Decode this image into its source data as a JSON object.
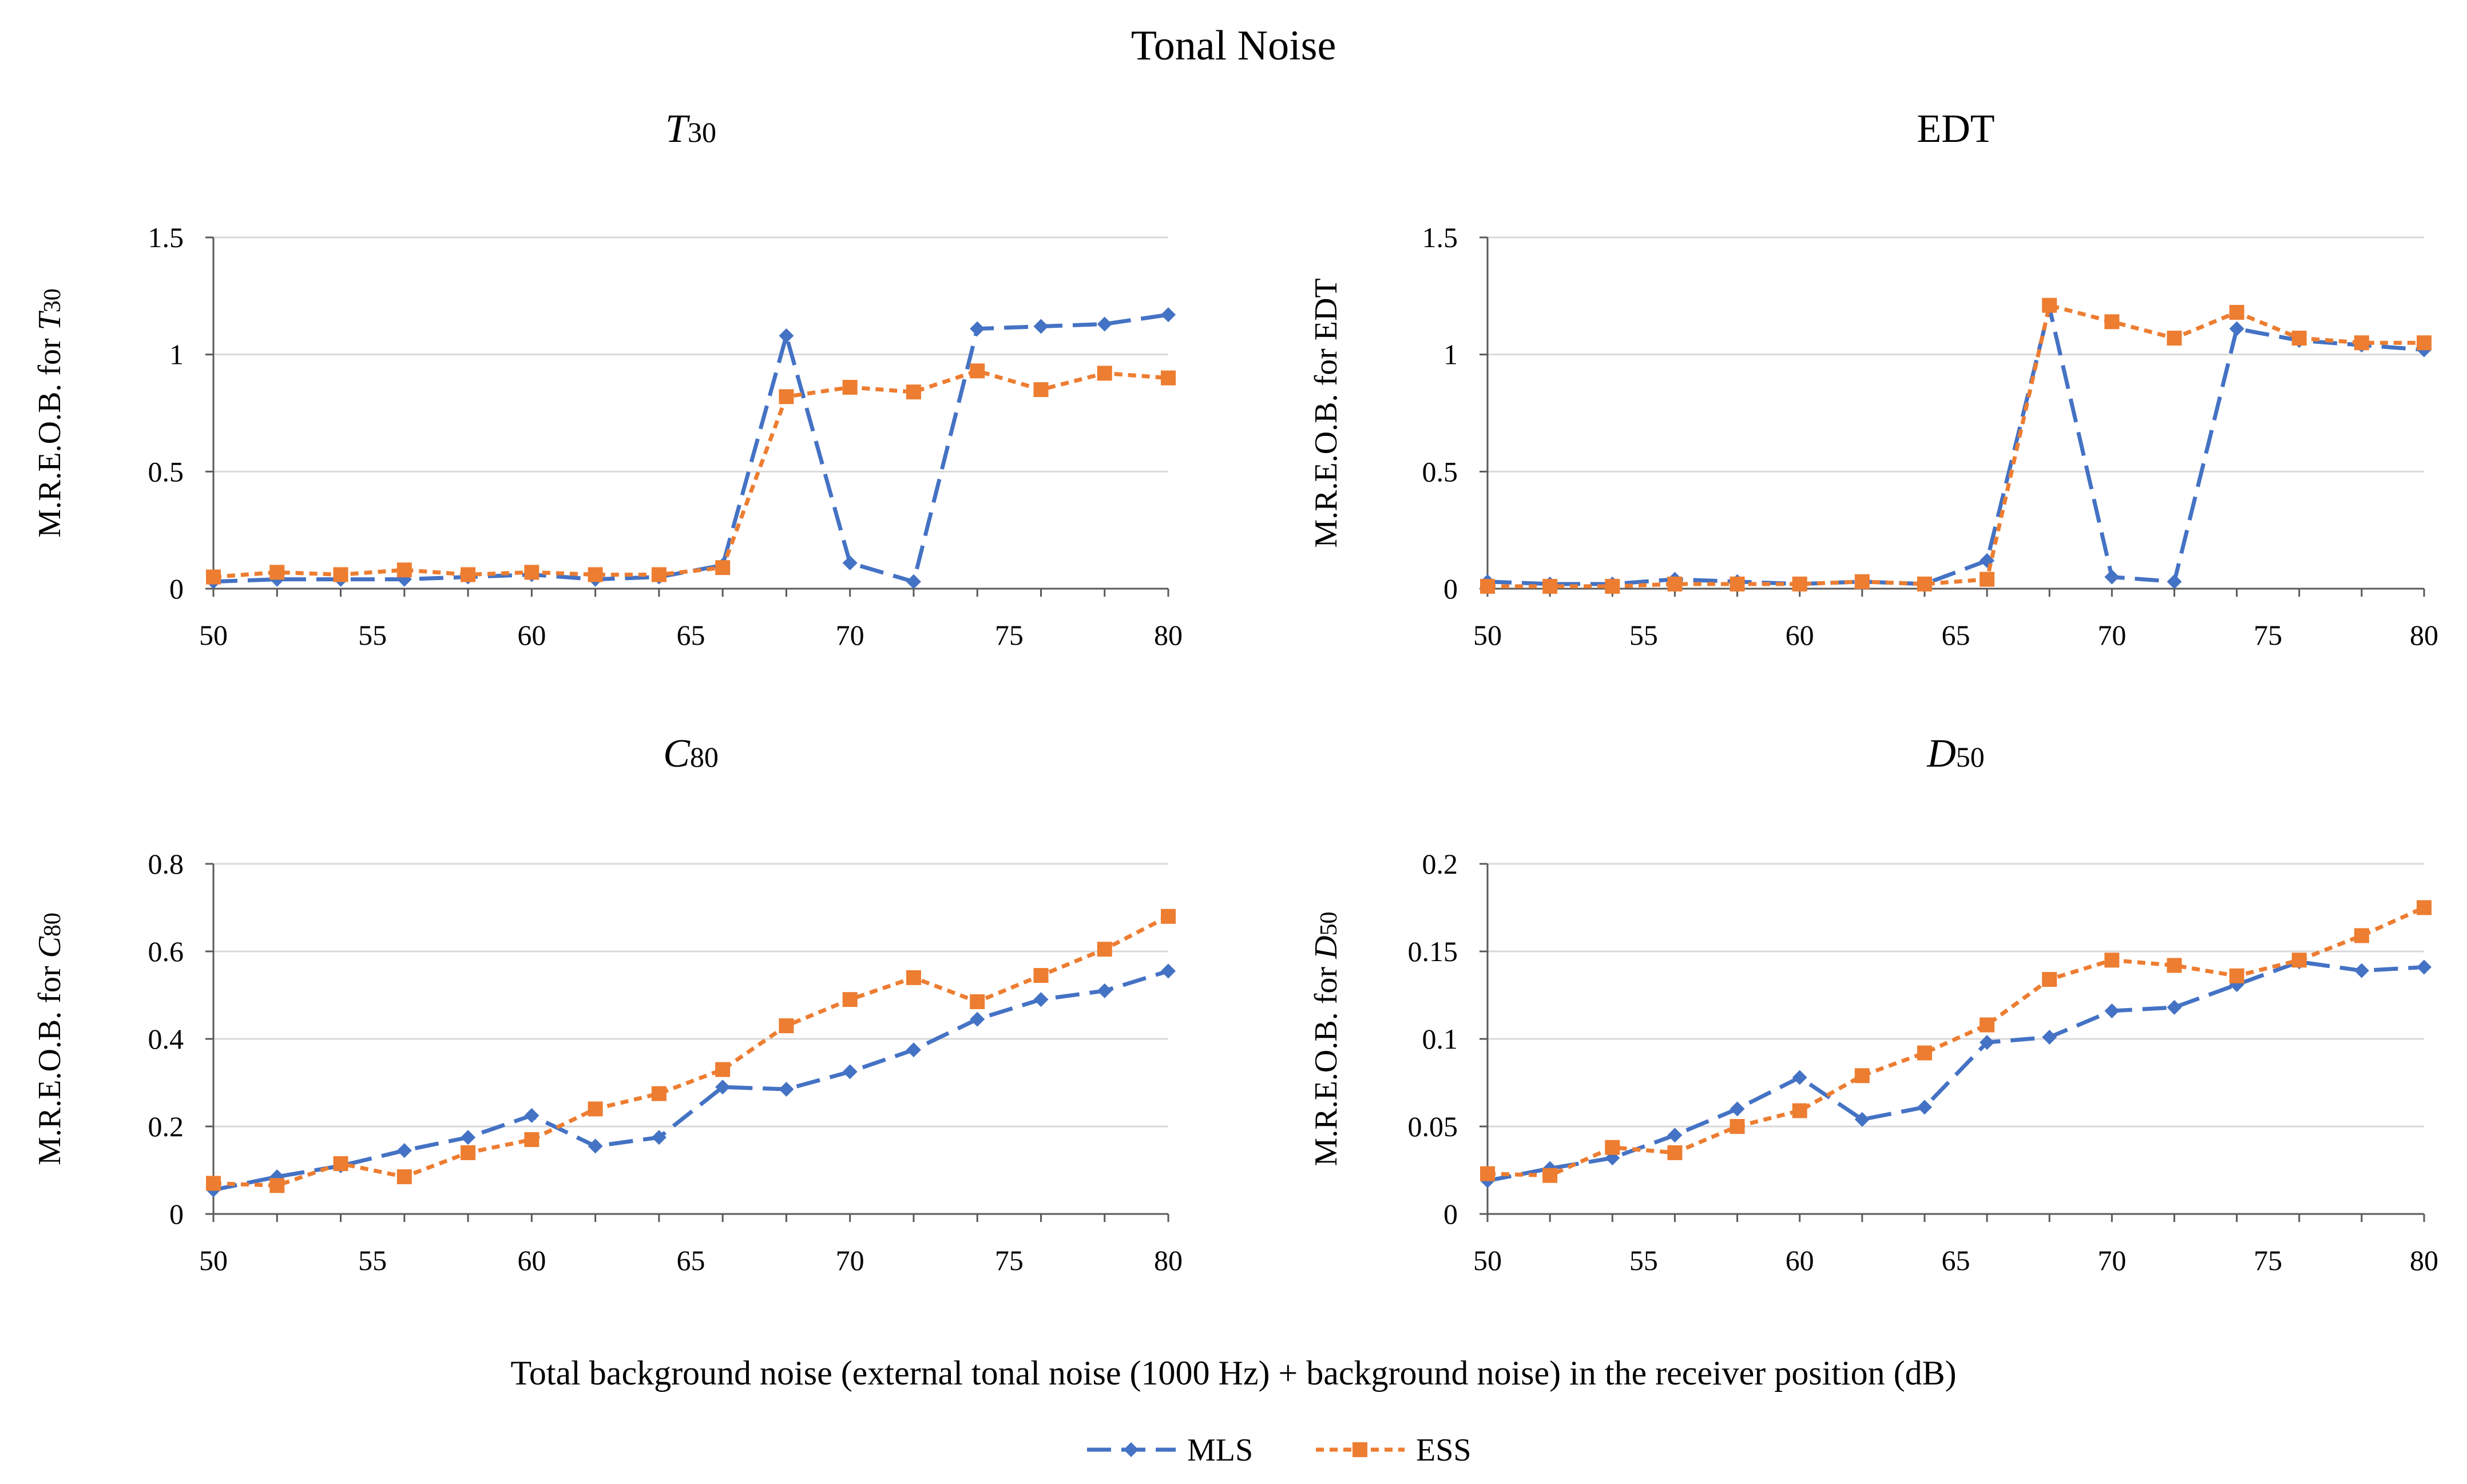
{
  "figure_title": "Tonal Noise",
  "shared_xlabel": "Total background noise (external tonal noise (1000 Hz) + background noise) in the receiver position (dB)",
  "legend": [
    {
      "name": "MLS",
      "color": "#4472C4",
      "marker": "diamond",
      "dash": "long-dash"
    },
    {
      "name": "ESS",
      "color": "#ED7D31",
      "marker": "square",
      "dash": "short-dash"
    }
  ],
  "chart_data": [
    {
      "type": "line",
      "title_main": "T",
      "title_sub": "30",
      "title_italic": true,
      "ylabel_prefix": "M.R.E.O.B. for ",
      "ylabel_main": "T",
      "ylabel_sub": "30",
      "ylabel_italic": true,
      "x": [
        50,
        52,
        54,
        56,
        58,
        60,
        62,
        64,
        66,
        68,
        70,
        72,
        74,
        76,
        78,
        80
      ],
      "xlim": [
        50,
        80
      ],
      "xticks": [
        "50",
        "55",
        "60",
        "65",
        "70",
        "75",
        "80"
      ],
      "ylim": [
        0,
        1.5
      ],
      "yticks": [
        "0",
        "0.5",
        "1",
        "1.5"
      ],
      "grid": "horizontal",
      "series": [
        {
          "name": "MLS",
          "values": [
            0.03,
            0.04,
            0.04,
            0.04,
            0.05,
            0.06,
            0.04,
            0.05,
            0.1,
            1.08,
            0.11,
            0.03,
            1.11,
            1.12,
            1.13,
            1.17
          ]
        },
        {
          "name": "ESS",
          "values": [
            0.05,
            0.07,
            0.06,
            0.08,
            0.06,
            0.07,
            0.06,
            0.06,
            0.09,
            0.82,
            0.86,
            0.84,
            0.93,
            0.85,
            0.92,
            0.9
          ]
        }
      ]
    },
    {
      "type": "line",
      "title_main": "EDT",
      "title_sub": "",
      "title_italic": false,
      "ylabel_prefix": "M.R.E.O.B. for ",
      "ylabel_main": "EDT",
      "ylabel_sub": "",
      "ylabel_italic": false,
      "x": [
        50,
        52,
        54,
        56,
        58,
        60,
        62,
        64,
        66,
        68,
        70,
        72,
        74,
        76,
        78,
        80
      ],
      "xlim": [
        50,
        80
      ],
      "xticks": [
        "50",
        "55",
        "60",
        "65",
        "70",
        "75",
        "80"
      ],
      "ylim": [
        0,
        1.5
      ],
      "yticks": [
        "0",
        "0.5",
        "1",
        "1.5"
      ],
      "grid": "horizontal",
      "series": [
        {
          "name": "MLS",
          "values": [
            0.03,
            0.02,
            0.02,
            0.04,
            0.03,
            0.02,
            0.03,
            0.02,
            0.12,
            1.2,
            0.05,
            0.03,
            1.11,
            1.06,
            1.04,
            1.02
          ]
        },
        {
          "name": "ESS",
          "values": [
            0.01,
            0.01,
            0.01,
            0.02,
            0.02,
            0.02,
            0.03,
            0.02,
            0.04,
            1.21,
            1.14,
            1.07,
            1.18,
            1.07,
            1.05,
            1.05
          ]
        }
      ]
    },
    {
      "type": "line",
      "title_main": "C",
      "title_sub": "80",
      "title_italic": true,
      "ylabel_prefix": "M.R.E.O.B. for ",
      "ylabel_main": "C",
      "ylabel_sub": "80",
      "ylabel_italic": true,
      "x": [
        50,
        52,
        54,
        56,
        58,
        60,
        62,
        64,
        66,
        68,
        70,
        72,
        74,
        76,
        78,
        80
      ],
      "xlim": [
        50,
        80
      ],
      "xticks": [
        "50",
        "55",
        "60",
        "65",
        "70",
        "75",
        "80"
      ],
      "ylim": [
        0,
        0.8
      ],
      "yticks": [
        "0",
        "0.2",
        "0.4",
        "0.6",
        "0.8"
      ],
      "grid": "horizontal",
      "series": [
        {
          "name": "MLS",
          "values": [
            0.055,
            0.085,
            0.11,
            0.145,
            0.175,
            0.225,
            0.155,
            0.175,
            0.29,
            0.285,
            0.325,
            0.375,
            0.445,
            0.49,
            0.51,
            0.555
          ]
        },
        {
          "name": "ESS",
          "values": [
            0.07,
            0.065,
            0.115,
            0.085,
            0.14,
            0.17,
            0.24,
            0.275,
            0.33,
            0.43,
            0.49,
            0.54,
            0.485,
            0.545,
            0.605,
            0.68
          ]
        }
      ]
    },
    {
      "type": "line",
      "title_main": "D",
      "title_sub": "50",
      "title_italic": true,
      "ylabel_prefix": "M.R.E.O.B. for ",
      "ylabel_main": "D",
      "ylabel_sub": "50",
      "ylabel_italic": true,
      "x": [
        50,
        52,
        54,
        56,
        58,
        60,
        62,
        64,
        66,
        68,
        70,
        72,
        74,
        76,
        78,
        80
      ],
      "xlim": [
        50,
        80
      ],
      "xticks": [
        "50",
        "55",
        "60",
        "65",
        "70",
        "75",
        "80"
      ],
      "ylim": [
        0,
        0.2
      ],
      "yticks": [
        "0",
        "0.05",
        "0.1",
        "0.15",
        "0.2"
      ],
      "grid": "horizontal",
      "series": [
        {
          "name": "MLS",
          "values": [
            0.019,
            0.026,
            0.032,
            0.045,
            0.06,
            0.078,
            0.054,
            0.061,
            0.098,
            0.101,
            0.116,
            0.118,
            0.131,
            0.144,
            0.139,
            0.141
          ]
        },
        {
          "name": "ESS",
          "values": [
            0.023,
            0.022,
            0.038,
            0.035,
            0.05,
            0.059,
            0.079,
            0.092,
            0.108,
            0.134,
            0.145,
            0.142,
            0.136,
            0.145,
            0.159,
            0.175
          ]
        }
      ]
    }
  ]
}
